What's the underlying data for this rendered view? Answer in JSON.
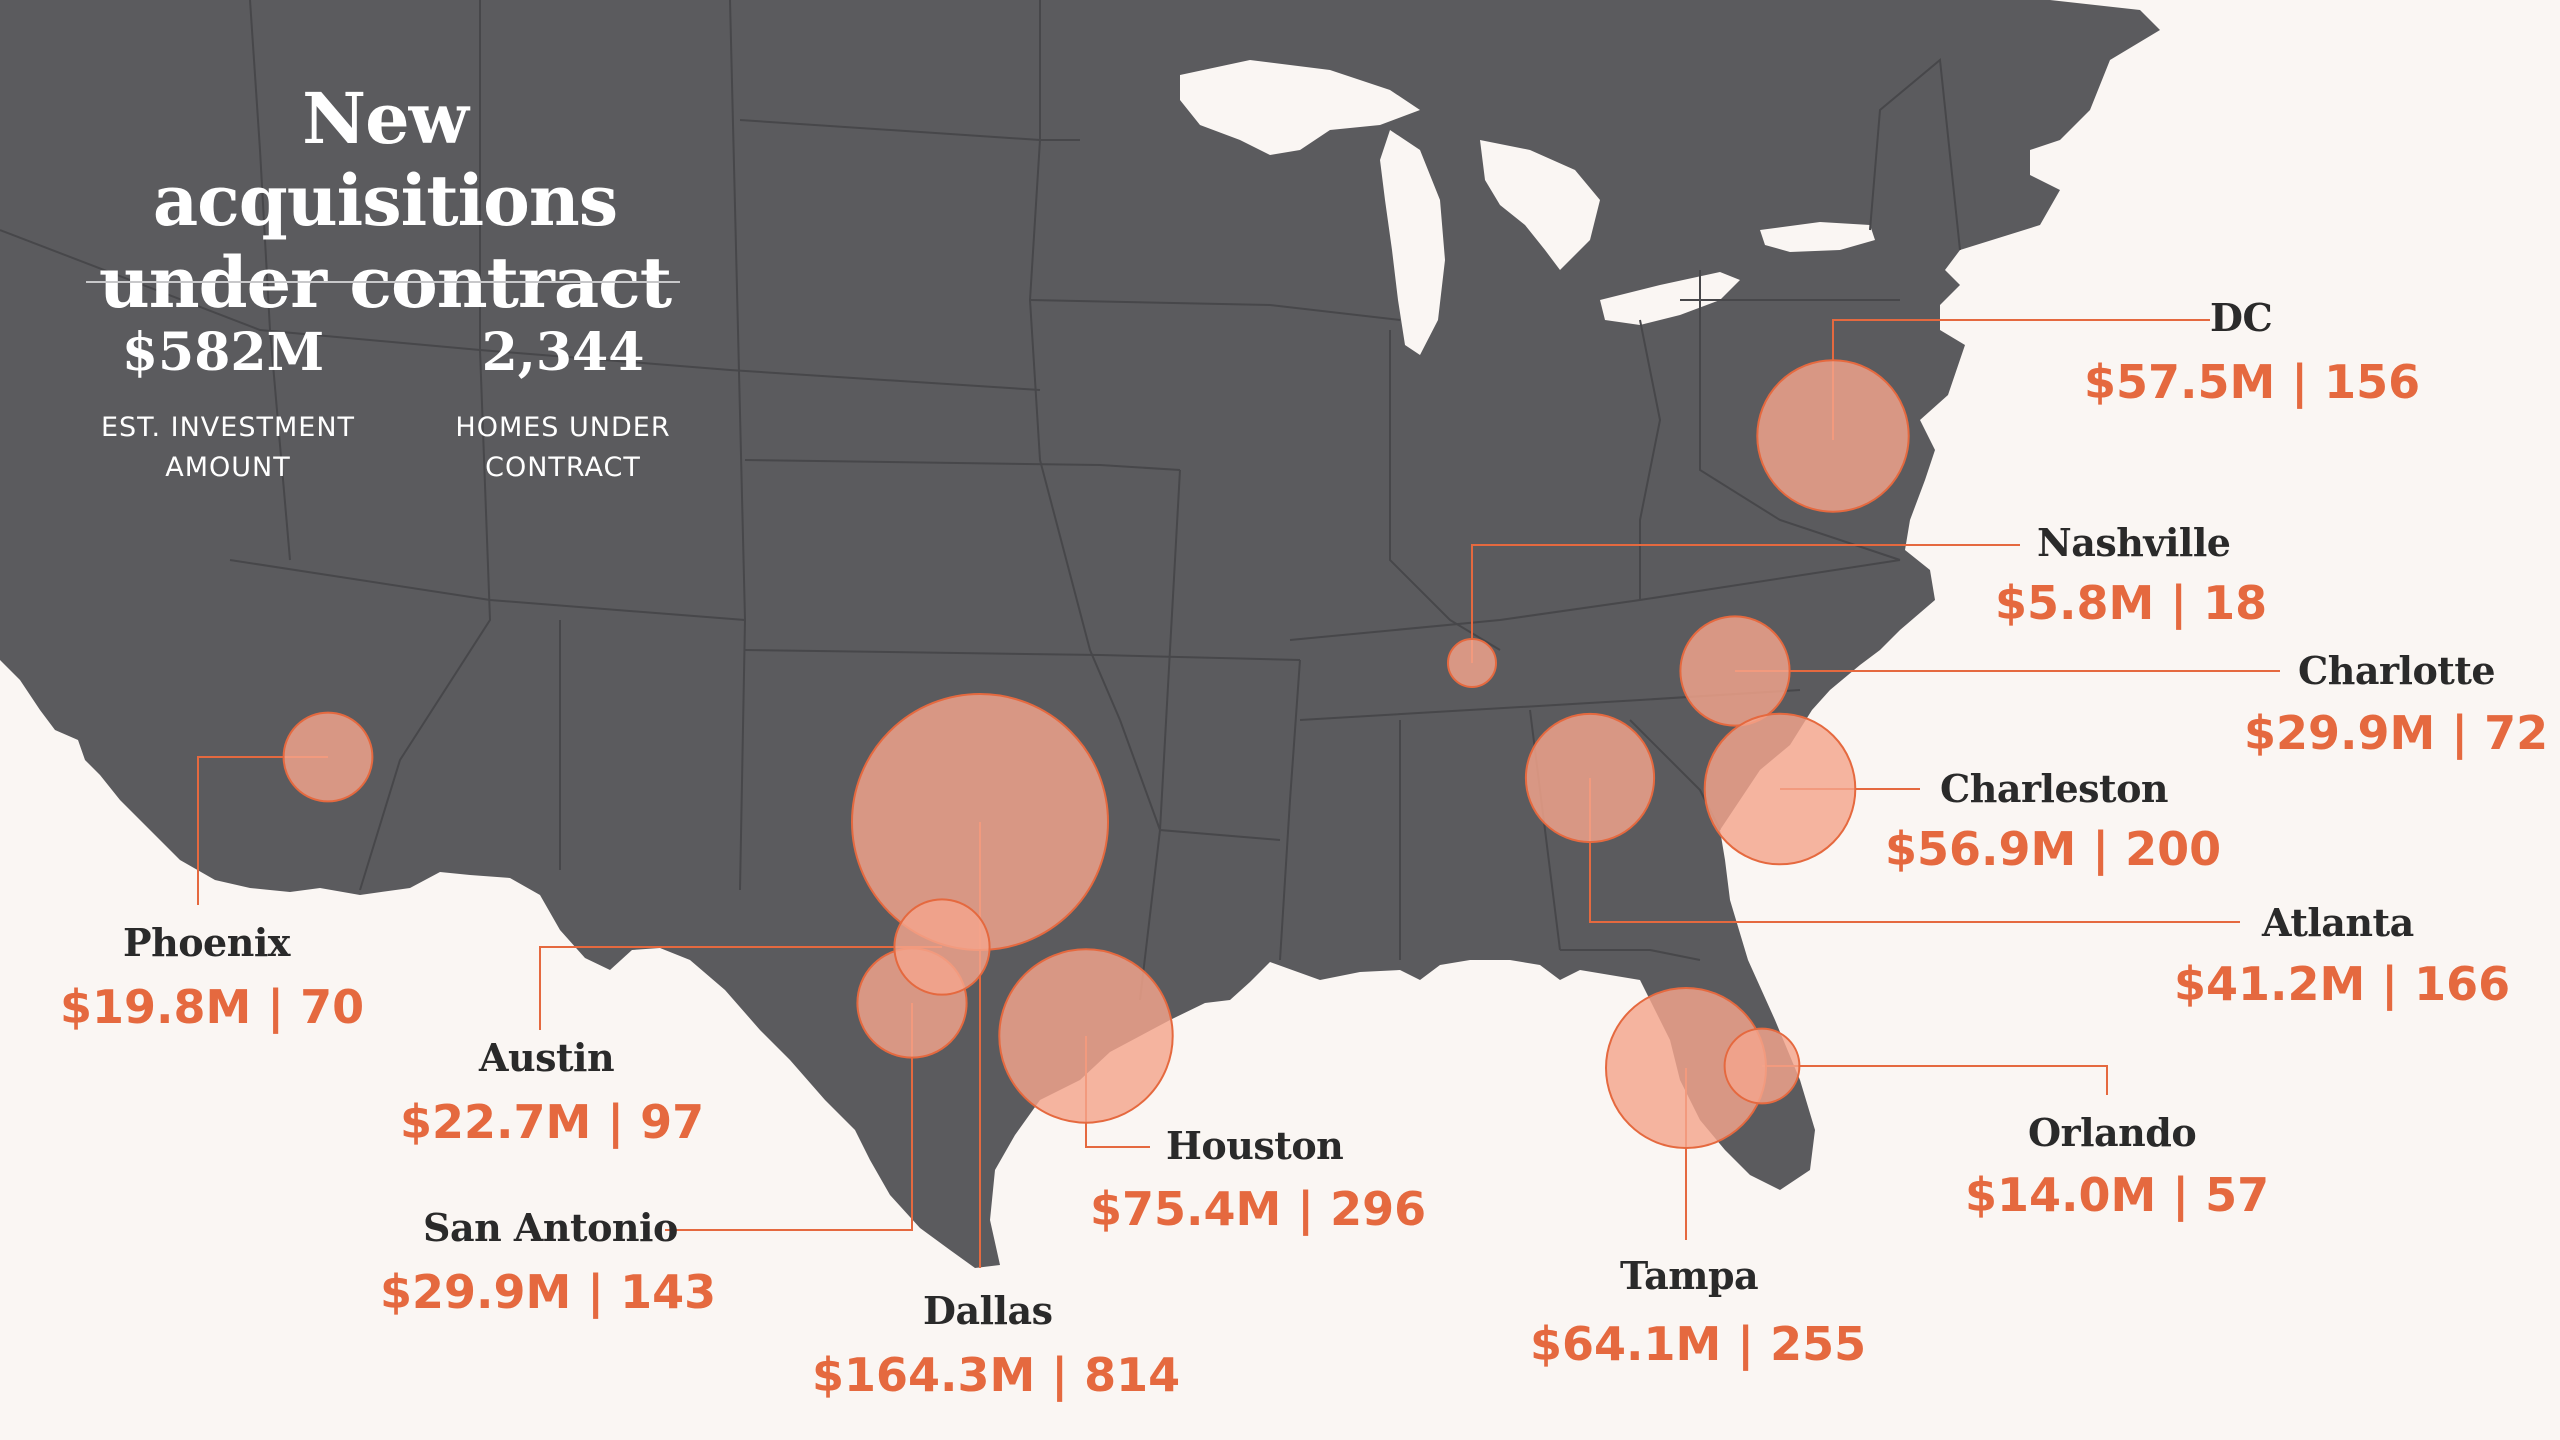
{
  "title": "New acquisitions under contract",
  "summary": {
    "investment_value": "$582M",
    "investment_label": "EST. INVESTMENT AMOUNT",
    "homes_value": "2,344",
    "homes_label": "HOMES UNDER CONTRACT"
  },
  "colors": {
    "land": "#5b5b5e",
    "state_border": "#47474a",
    "background": "#faf6f3",
    "bubble_fill": "#f4a58c",
    "bubble_stroke": "#e5693f",
    "leader_line": "#e5693f",
    "stat_text": "#e5693f",
    "name_text": "#2a2a2a"
  },
  "markets": [
    {
      "name": "DC",
      "stat": "$57.5M | 156",
      "investment_musd": 57.5,
      "homes": 156
    },
    {
      "name": "Nashville",
      "stat": "$5.8M | 18",
      "investment_musd": 5.8,
      "homes": 18
    },
    {
      "name": "Charlotte",
      "stat": "$29.9M | 72",
      "investment_musd": 29.9,
      "homes": 72
    },
    {
      "name": "Charleston",
      "stat": "$56.9M | 200",
      "investment_musd": 56.9,
      "homes": 200
    },
    {
      "name": "Atlanta",
      "stat": "$41.2M | 166",
      "investment_musd": 41.2,
      "homes": 166
    },
    {
      "name": "Orlando",
      "stat": "$14.0M | 57",
      "investment_musd": 14.0,
      "homes": 57
    },
    {
      "name": "Tampa",
      "stat": "$64.1M | 255",
      "investment_musd": 64.1,
      "homes": 255
    },
    {
      "name": "Houston",
      "stat": "$75.4M | 296",
      "investment_musd": 75.4,
      "homes": 296
    },
    {
      "name": "Dallas",
      "stat": "$164.3M | 814",
      "investment_musd": 164.3,
      "homes": 814
    },
    {
      "name": "San Antonio",
      "stat": "$29.9M | 143",
      "investment_musd": 29.9,
      "homes": 143
    },
    {
      "name": "Austin",
      "stat": "$22.7M | 97",
      "investment_musd": 22.7,
      "homes": 97
    },
    {
      "name": "Phoenix",
      "stat": "$19.8M | 70",
      "investment_musd": 19.8,
      "homes": 70
    }
  ]
}
